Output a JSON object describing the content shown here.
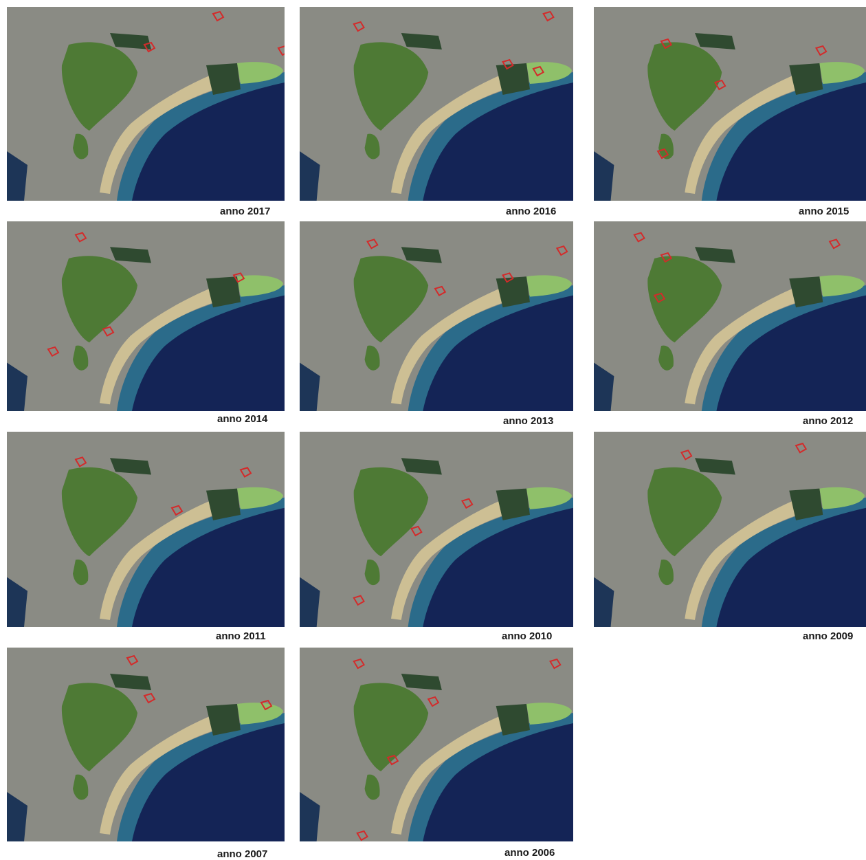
{
  "panels": [
    {
      "caption": "anno 2017"
    },
    {
      "caption": "anno 2016"
    },
    {
      "caption": "anno 2015"
    },
    {
      "caption": "anno 2014"
    },
    {
      "caption": "anno 2013"
    },
    {
      "caption": "anno 2012"
    },
    {
      "caption": "anno 2011"
    },
    {
      "caption": "anno 2010"
    },
    {
      "caption": "anno 2009"
    },
    {
      "caption": "anno 2007"
    },
    {
      "caption": "anno 2006"
    }
  ],
  "colors": {
    "urban": "#8a8b84",
    "lagoon": "#4e7a35",
    "dark_vegetation": "#2f4a30",
    "light_lagoon": "#8fc06a",
    "beach_fields": "#cdbf94",
    "sea": "#142456",
    "shallow_water": "#2b6b8a",
    "change_marks": "#d42a2a"
  }
}
